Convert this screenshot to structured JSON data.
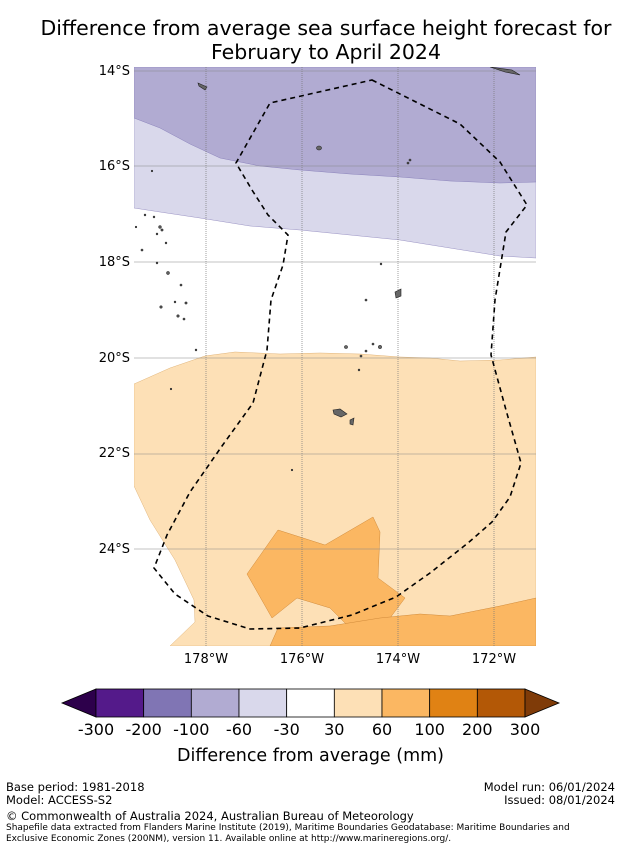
{
  "title": {
    "line1": "Difference from average sea surface height forecast for",
    "line2": "February to April 2024"
  },
  "map": {
    "lat_labels": [
      "14°S",
      "16°S",
      "18°S",
      "20°S",
      "22°S",
      "24°S"
    ],
    "lon_labels": [
      "178°W",
      "176°W",
      "174°W",
      "172°W"
    ],
    "region": {
      "lon_min": -179.5,
      "lon_max": -171.15,
      "lat_min": -25.95,
      "lat_max": -13.9
    },
    "anomaly_bands": [
      {
        "range": "-100 to -60 mm",
        "color": "#b1abd2",
        "area": "north of ~15°S to 16.3°S"
      },
      {
        "range": "-60 to -30 mm",
        "color": "#d9d8eb",
        "area": "~15°S to 17.8°S band"
      },
      {
        "range": "-30 to 30 mm",
        "color": "#ffffff",
        "area": "central band ~17.5°S to 20°S"
      },
      {
        "range": "30 to 60 mm",
        "color": "#fde0b6",
        "area": "south of ~20°S"
      },
      {
        "range": "60 to 100 mm",
        "color": "#fbb762",
        "area": "patches near 24–26°S"
      }
    ],
    "eez_boundary": "dashed line"
  },
  "colorbar": {
    "ticks": [
      "-300",
      "-200",
      "-100",
      "-60",
      "-30",
      "30",
      "60",
      "100",
      "200",
      "300"
    ],
    "colors": [
      "#541a8a",
      "#8075b4",
      "#b1abd2",
      "#d9d8eb",
      "#ffffff",
      "#fde0b6",
      "#fbb762",
      "#e08214",
      "#b35806"
    ],
    "under_color": "#2d004b",
    "over_color": "#7f3b08",
    "label": "Difference from average (mm)"
  },
  "footer": {
    "base_period": "Base period: 1981-2018",
    "model": "Model: ACCESS-S2",
    "model_run": "Model run: 06/01/2024",
    "issued": "Issued: 08/01/2024",
    "copyright": "© Commonwealth of Australia 2024, Australian Bureau of Meteorology",
    "shapefile_line1": "Shapefile data extracted from Flanders Marine Institute (2019), Maritime Boundaries Geodatabase: Maritime Boundaries and",
    "shapefile_line2": "Exclusive Economic Zones (200NM), version 11. Available online at http://www.marineregions.org/."
  }
}
